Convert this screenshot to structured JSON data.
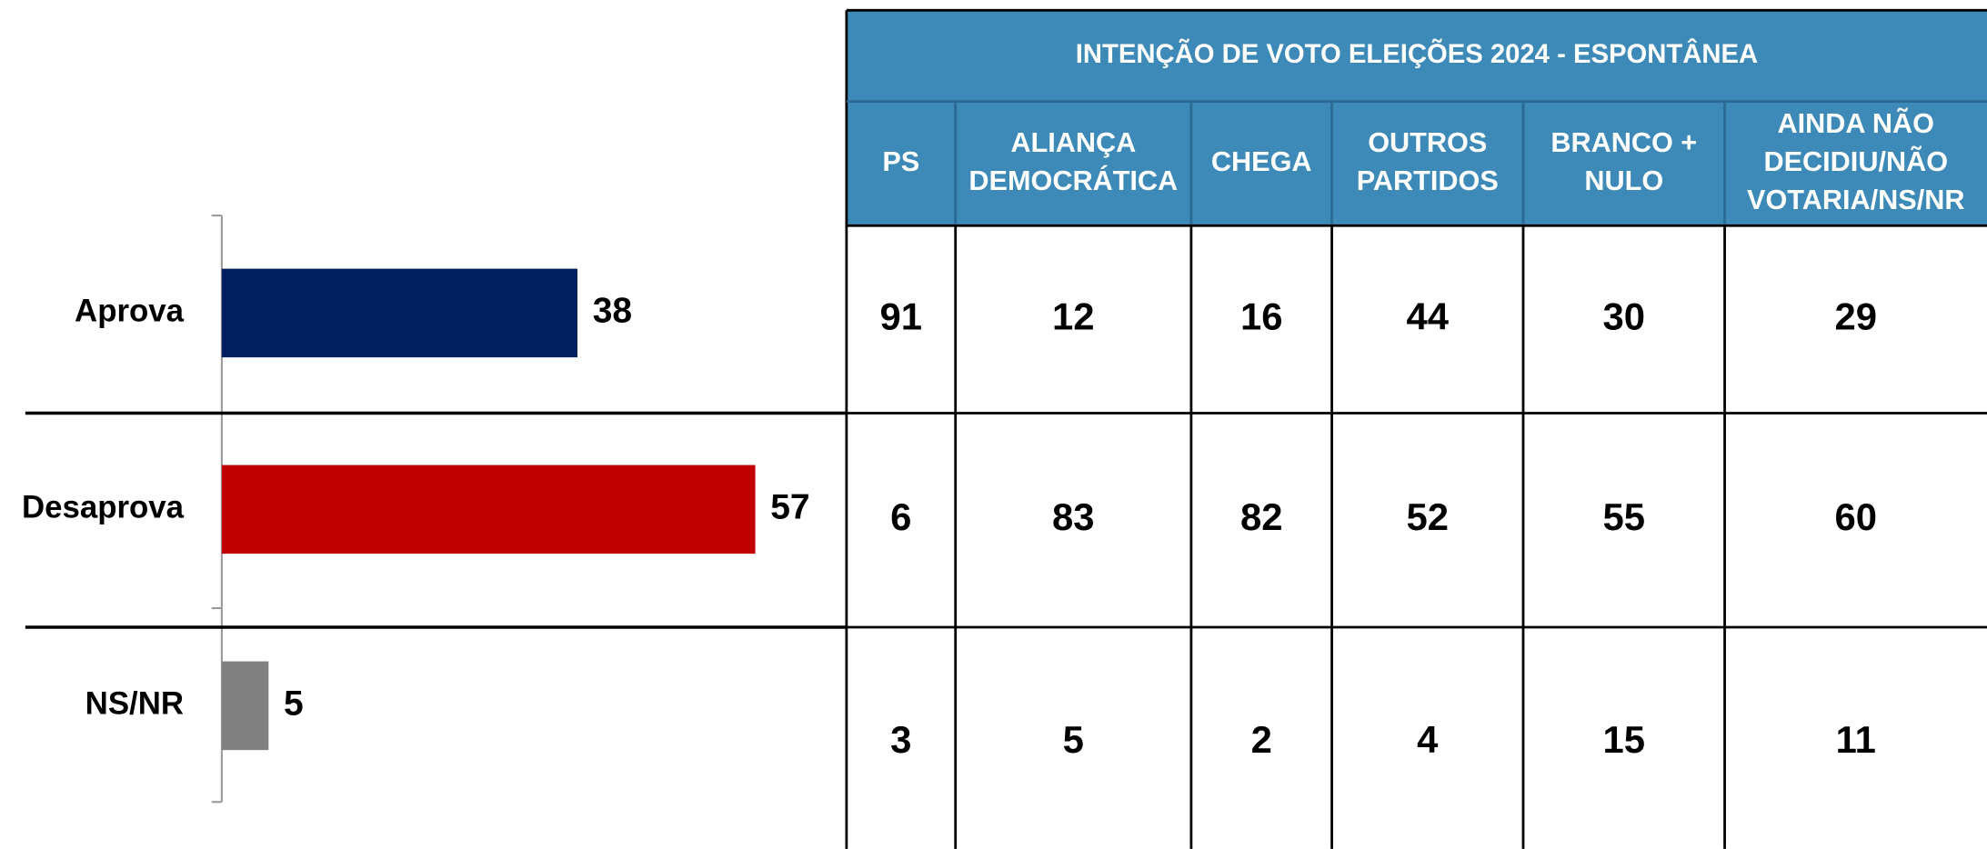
{
  "chart_data": {
    "type": "bar",
    "orientation": "horizontal",
    "categories": [
      "Aprova",
      "Desaprova",
      "NS/NR"
    ],
    "values": [
      38,
      57,
      5
    ],
    "colors": [
      "#001f5f",
      "#c00000",
      "#808080"
    ],
    "xlim": [
      0,
      70
    ]
  },
  "table": {
    "title": "INTENÇÃO DE VOTO ELEIÇÕES 2024 - ESPONTÂNEA",
    "columns": [
      [
        "PS"
      ],
      [
        "ALIANÇA",
        "DEMOCRÁTICA"
      ],
      [
        "CHEGA"
      ],
      [
        "OUTROS",
        "PARTIDOS"
      ],
      [
        "BRANCO +",
        "NULO"
      ],
      [
        "AINDA NÃO",
        "DECIDIU/NÃO",
        "VOTARIA/NS/NR"
      ]
    ],
    "rows": [
      [
        91,
        12,
        16,
        44,
        30,
        29
      ],
      [
        6,
        83,
        82,
        52,
        55,
        60
      ],
      [
        3,
        5,
        2,
        4,
        15,
        11
      ]
    ]
  }
}
